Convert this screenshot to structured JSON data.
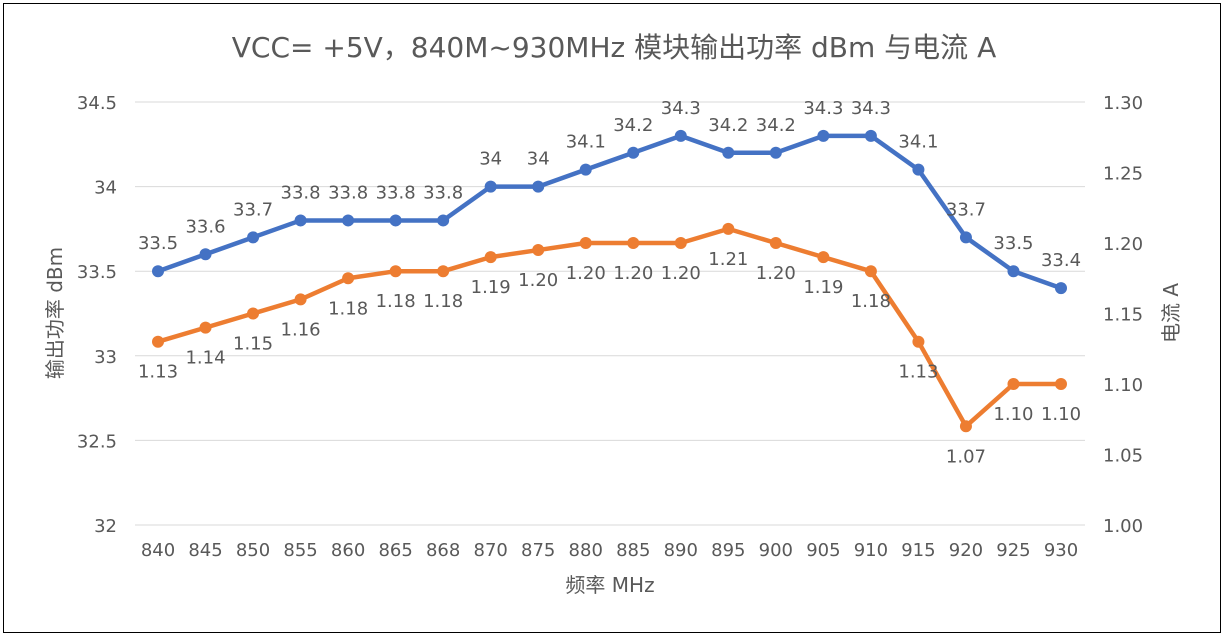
{
  "chart_data": {
    "type": "line",
    "title": "VCC= +5V，840M~930MHz 模块输出功率 dBm 与电流 A",
    "xlabel": "频率 MHz",
    "ylabel": "输出功率 dBm",
    "y2label": "电流 A",
    "categories": [
      "840",
      "845",
      "850",
      "855",
      "860",
      "865",
      "868",
      "870",
      "875",
      "880",
      "885",
      "890",
      "895",
      "900",
      "905",
      "910",
      "915",
      "920",
      "925",
      "930"
    ],
    "ylim": [
      32,
      34.5
    ],
    "y_ticks": [
      "32",
      "32.5",
      "33",
      "33.5",
      "34",
      "34.5"
    ],
    "y2lim": [
      1.0,
      1.3
    ],
    "y2_ticks": [
      "1.00",
      "1.05",
      "1.10",
      "1.15",
      "1.20",
      "1.25",
      "1.30"
    ],
    "grid": true,
    "series": [
      {
        "axis": "left",
        "color": "#4472C4",
        "values": [
          33.5,
          33.6,
          33.7,
          33.8,
          33.8,
          33.8,
          33.8,
          34,
          34,
          34.1,
          34.2,
          34.3,
          34.2,
          34.2,
          34.3,
          34.3,
          34.1,
          33.7,
          33.5,
          33.4
        ],
        "labels": [
          "33.5",
          "33.6",
          "33.7",
          "33.8",
          "33.8",
          "33.8",
          "33.8",
          "34",
          "34",
          "34.1",
          "34.2",
          "34.3",
          "34.2",
          "34.2",
          "34.3",
          "34.3",
          "34.1",
          "33.7",
          "33.5",
          "33.4"
        ]
      },
      {
        "axis": "right",
        "color": "#ED7D31",
        "values": [
          1.13,
          1.14,
          1.15,
          1.16,
          1.175,
          1.18,
          1.18,
          1.19,
          1.195,
          1.2,
          1.2,
          1.2,
          1.21,
          1.2,
          1.19,
          1.18,
          1.13,
          1.07,
          1.1,
          1.1
        ],
        "labels": [
          "1.13",
          "1.14",
          "1.15",
          "1.16",
          "1.18",
          "1.18",
          "1.18",
          "1.19",
          "1.20",
          "1.20",
          "1.20",
          "1.20",
          "1.21",
          "1.20",
          "1.19",
          "1.18",
          "1.13",
          "1.07",
          "1.10",
          "1.10"
        ]
      }
    ]
  }
}
